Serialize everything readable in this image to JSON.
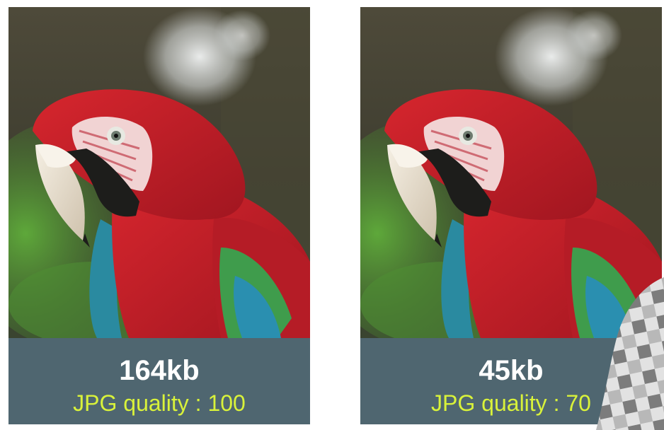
{
  "panels": [
    {
      "size": "164kb",
      "quality": "JPG quality : 100"
    },
    {
      "size": "45kb",
      "quality": "JPG quality : 70"
    }
  ],
  "colors": {
    "caption_bg": "#4f6670",
    "size_text": "#ffffff",
    "quality_text": "#d9f23a"
  }
}
